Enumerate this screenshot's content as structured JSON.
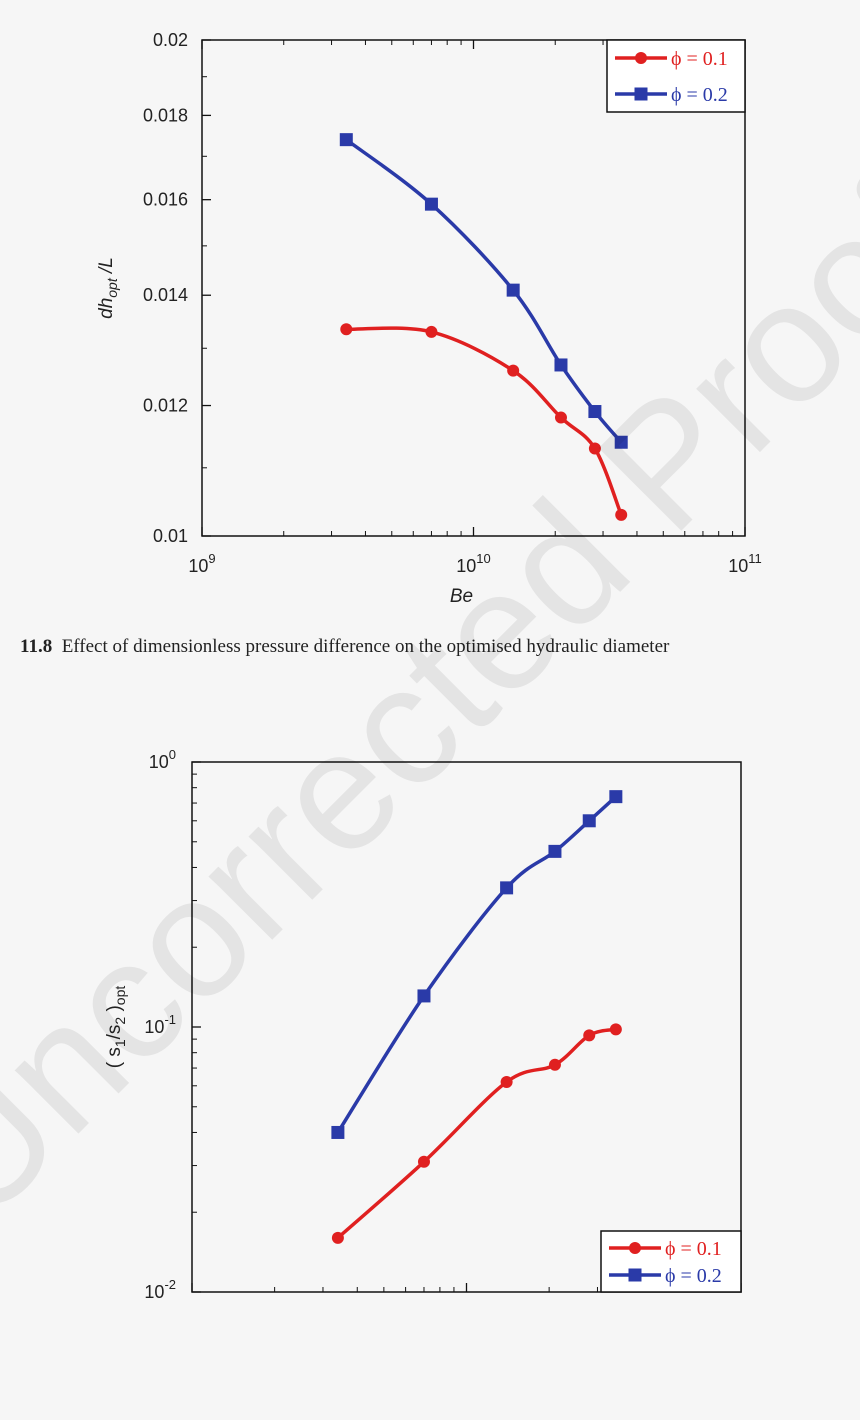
{
  "caption": {
    "number": "11.8",
    "text": "Effect of dimensionless pressure difference on the optimised hydraulic diameter"
  },
  "watermark": "Uncorrected Proof",
  "colors": {
    "red": "#e02020",
    "blue": "#2a3aa8",
    "axis": "#111111"
  },
  "chart_data": [
    {
      "type": "line",
      "x_scale": "log",
      "y_scale": "log",
      "xlim": [
        1000000000.0,
        100000000000.0
      ],
      "ylim": [
        0.01,
        0.02
      ],
      "xlabel": "Be",
      "ylabel_main": "dh",
      "ylabel_sub": "opt",
      "ylabel_tail": " /L",
      "y_tick_labels": [
        "0.01",
        "0.012",
        "0.014",
        "0.016",
        "0.018",
        "0.02"
      ],
      "y_tick_values": [
        0.01,
        0.012,
        0.014,
        0.016,
        0.018,
        0.02
      ],
      "x_tick_labels": [
        {
          "base": "10",
          "exp": "9",
          "value": 1000000000.0
        },
        {
          "base": "10",
          "exp": "10",
          "value": 10000000000.0
        },
        {
          "base": "10",
          "exp": "11",
          "value": 100000000000.0
        }
      ],
      "legend_position": "top-right",
      "series": [
        {
          "name": "ϕ = 0.1",
          "color": "#e02020",
          "marker": "circle",
          "x": [
            3400000000.0,
            7000000000.0,
            14000000000.0,
            21000000000.0,
            28000000000.0,
            35000000000.0
          ],
          "y": [
            0.01335,
            0.0133,
            0.0126,
            0.0118,
            0.0113,
            0.0103
          ]
        },
        {
          "name": "ϕ = 0.2",
          "color": "#2a3aa8",
          "marker": "square",
          "x": [
            3400000000.0,
            7000000000.0,
            14000000000.0,
            21000000000.0,
            28000000000.0,
            35000000000.0
          ],
          "y": [
            0.0174,
            0.0159,
            0.0141,
            0.0127,
            0.0119,
            0.0114
          ]
        }
      ]
    },
    {
      "type": "line",
      "x_scale": "log",
      "y_scale": "log",
      "xlim": [
        1000000000.0,
        100000000000.0
      ],
      "ylim": [
        0.01,
        1
      ],
      "xlabel": "",
      "ylabel_parts": [
        "( s",
        "1",
        "/s",
        "2",
        " )",
        "opt"
      ],
      "y_tick_labels": [
        {
          "base": "10",
          "exp": "-2",
          "value": 0.01
        },
        {
          "base": "10",
          "exp": "-1",
          "value": 0.1
        },
        {
          "base": "10",
          "exp": "0",
          "value": 1
        }
      ],
      "legend_position": "bottom-right",
      "series": [
        {
          "name": "ϕ = 0.1",
          "color": "#e02020",
          "marker": "circle",
          "x": [
            3400000000.0,
            7000000000.0,
            14000000000.0,
            21000000000.0,
            28000000000.0,
            35000000000.0
          ],
          "y": [
            0.016,
            0.031,
            0.062,
            0.072,
            0.093,
            0.098
          ]
        },
        {
          "name": "ϕ = 0.2",
          "color": "#2a3aa8",
          "marker": "square",
          "x": [
            3400000000.0,
            7000000000.0,
            14000000000.0,
            21000000000.0,
            28000000000.0,
            35000000000.0
          ],
          "y": [
            0.04,
            0.131,
            0.335,
            0.46,
            0.6,
            0.74
          ]
        }
      ]
    }
  ]
}
